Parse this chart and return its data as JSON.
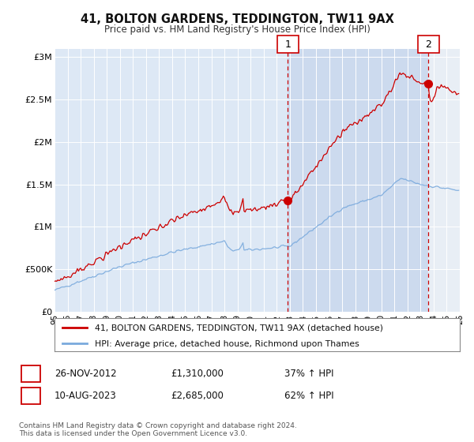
{
  "title": "41, BOLTON GARDENS, TEDDINGTON, TW11 9AX",
  "subtitle": "Price paid vs. HM Land Registry's House Price Index (HPI)",
  "ylabel_ticks": [
    "£0",
    "£500K",
    "£1M",
    "£1.5M",
    "£2M",
    "£2.5M",
    "£3M"
  ],
  "ytick_vals": [
    0,
    500000,
    1000000,
    1500000,
    2000000,
    2500000,
    3000000
  ],
  "ylim": [
    0,
    3100000
  ],
  "line1_color": "#cc0000",
  "line2_color": "#7aaadd",
  "marker1_val": 1310000,
  "marker2_val": 2685000,
  "legend_line1": "41, BOLTON GARDENS, TEDDINGTON, TW11 9AX (detached house)",
  "legend_line2": "HPI: Average price, detached house, Richmond upon Thames",
  "annot1_date": "26-NOV-2012",
  "annot1_price": "£1,310,000",
  "annot1_hpi": "37% ↑ HPI",
  "annot2_date": "10-AUG-2023",
  "annot2_price": "£2,685,000",
  "annot2_hpi": "62% ↑ HPI",
  "footer": "Contains HM Land Registry data © Crown copyright and database right 2024.\nThis data is licensed under the Open Government Licence v3.0.",
  "background_color": "#ffffff",
  "plot_bg_color": "#dde8f5",
  "shade_color": "#ccdaee"
}
